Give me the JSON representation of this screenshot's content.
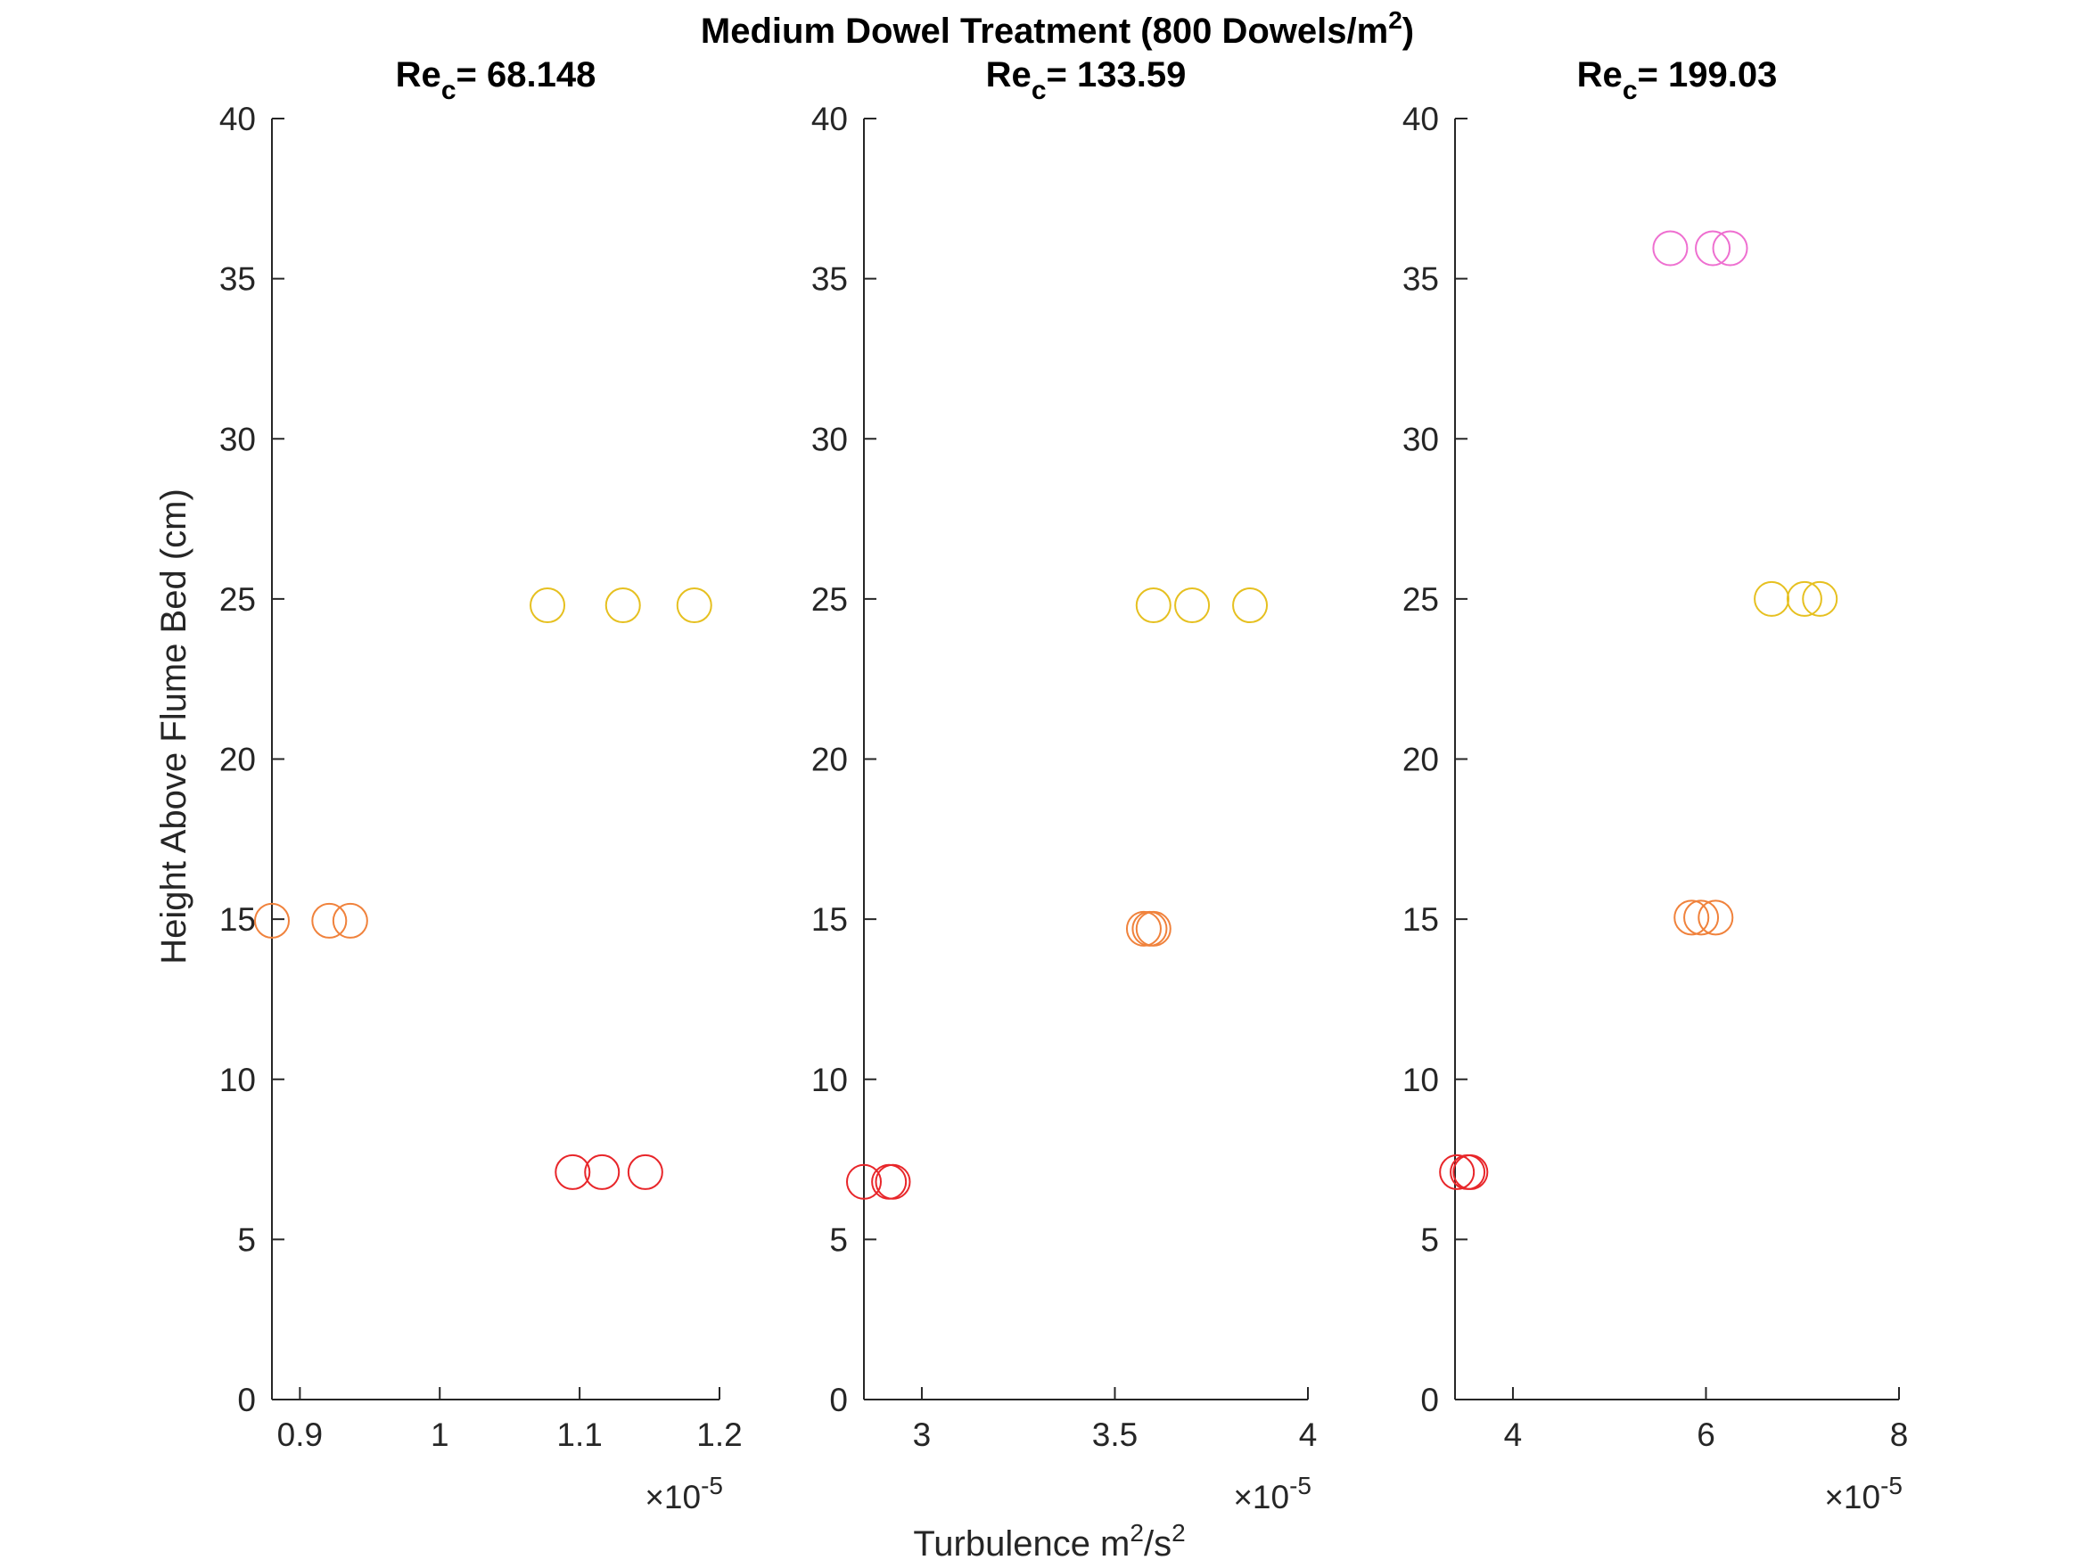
{
  "figure": {
    "suptitle_main": "Medium Dowel Treatment (800 Dowels/m",
    "suptitle_sup": "2",
    "suptitle_end": ")",
    "ylabel": "Height Above Flume Bed (cm)",
    "xlabel_main": "Turbulence m",
    "xlabel_sup1": "2",
    "xlabel_mid": "/s",
    "xlabel_sup2": "2"
  },
  "colors": {
    "z7": "#e8262a",
    "z15": "#f0823c",
    "z25": "#e6c020",
    "z36": "#ee6fd0",
    "axis": "#262626"
  },
  "chart_data": [
    {
      "type": "scatter",
      "title_main": "Re",
      "title_sub": "c",
      "title_rest": "= 68.148",
      "x_multiplier": "×10",
      "x_multiplier_exp": "-5",
      "xlim": [
        0.88,
        1.2
      ],
      "ylim": [
        0,
        40
      ],
      "xticks": [
        0.9,
        1,
        1.1,
        1.2
      ],
      "xtick_labels": [
        "0.9",
        "1",
        "1.1",
        "1.2"
      ],
      "yticks": [
        0,
        5,
        10,
        15,
        20,
        25,
        30,
        35,
        40
      ],
      "ytick_labels": [
        "0",
        "5",
        "10",
        "15",
        "20",
        "25",
        "30",
        "35",
        "40"
      ],
      "grid": false,
      "series": [
        {
          "color_key": "z7",
          "points": [
            [
              1.095,
              7.1
            ],
            [
              1.116,
              7.1
            ],
            [
              1.147,
              7.1
            ]
          ]
        },
        {
          "color_key": "z15",
          "points": [
            [
              0.88,
              14.95
            ],
            [
              0.921,
              14.95
            ],
            [
              0.936,
              14.95
            ]
          ]
        },
        {
          "color_key": "z25",
          "points": [
            [
              1.077,
              24.8
            ],
            [
              1.131,
              24.8
            ],
            [
              1.182,
              24.8
            ]
          ]
        }
      ]
    },
    {
      "type": "scatter",
      "title_main": "Re",
      "title_sub": "c",
      "title_rest": "= 133.59",
      "x_multiplier": "×10",
      "x_multiplier_exp": "-5",
      "xlim": [
        2.85,
        4.0
      ],
      "ylim": [
        0,
        40
      ],
      "xticks": [
        3,
        3.5,
        4
      ],
      "xtick_labels": [
        "3",
        "3.5",
        "4"
      ],
      "yticks": [
        0,
        5,
        10,
        15,
        20,
        25,
        30,
        35,
        40
      ],
      "ytick_labels": [
        "0",
        "5",
        "10",
        "15",
        "20",
        "25",
        "30",
        "35",
        "40"
      ],
      "grid": false,
      "series": [
        {
          "color_key": "z7",
          "points": [
            [
              2.85,
              6.8
            ],
            [
              2.915,
              6.8
            ],
            [
              2.925,
              6.8
            ]
          ]
        },
        {
          "color_key": "z15",
          "points": [
            [
              3.575,
              14.7
            ],
            [
              3.59,
              14.7
            ],
            [
              3.6,
              14.7
            ]
          ]
        },
        {
          "color_key": "z25",
          "points": [
            [
              3.6,
              24.8
            ],
            [
              3.7,
              24.8
            ],
            [
              3.85,
              24.8
            ]
          ]
        }
      ]
    },
    {
      "type": "scatter",
      "title_main": "Re",
      "title_sub": "c",
      "title_rest": "= 199.03",
      "x_multiplier": "×10",
      "x_multiplier_exp": "-5",
      "xlim": [
        3.4,
        8.0
      ],
      "ylim": [
        0,
        40
      ],
      "xticks": [
        4,
        6,
        8
      ],
      "xtick_labels": [
        "4",
        "6",
        "8"
      ],
      "yticks": [
        0,
        5,
        10,
        15,
        20,
        25,
        30,
        35,
        40
      ],
      "ytick_labels": [
        "0",
        "5",
        "10",
        "15",
        "20",
        "25",
        "30",
        "35",
        "40"
      ],
      "grid": false,
      "series": [
        {
          "color_key": "z7",
          "points": [
            [
              3.42,
              7.1
            ],
            [
              3.53,
              7.1
            ],
            [
              3.56,
              7.1
            ]
          ]
        },
        {
          "color_key": "z15",
          "points": [
            [
              5.85,
              15.05
            ],
            [
              5.95,
              15.05
            ],
            [
              6.1,
              15.05
            ]
          ]
        },
        {
          "color_key": "z25",
          "points": [
            [
              6.68,
              25.0
            ],
            [
              7.02,
              25.0
            ],
            [
              7.18,
              25.0
            ]
          ]
        },
        {
          "color_key": "z36",
          "points": [
            [
              5.63,
              35.95
            ],
            [
              6.07,
              35.95
            ],
            [
              6.25,
              35.95
            ]
          ]
        }
      ]
    }
  ]
}
